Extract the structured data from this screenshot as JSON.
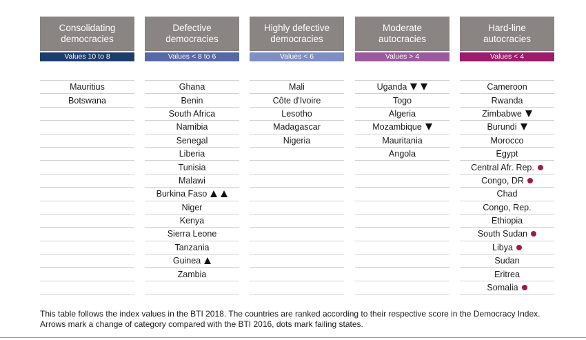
{
  "chart_data": {
    "type": "table",
    "columns": [
      {
        "header": "Consolidating democracies",
        "range": "Values 10 to 8",
        "color": "#1b3d6e",
        "rows": [
          {
            "name": "Mauritius"
          },
          {
            "name": "Botswana"
          }
        ]
      },
      {
        "header": "Defective democracies",
        "range": "Values < 8 to 6",
        "color": "#5768a8",
        "rows": [
          {
            "name": "Ghana"
          },
          {
            "name": "Benin"
          },
          {
            "name": "South Africa"
          },
          {
            "name": "Namibia"
          },
          {
            "name": "Senegal"
          },
          {
            "name": "Liberia"
          },
          {
            "name": "Tunisia"
          },
          {
            "name": "Malawi"
          },
          {
            "name": "Burkina Faso",
            "arrows": [
              "up",
              "up"
            ]
          },
          {
            "name": "Niger"
          },
          {
            "name": "Kenya"
          },
          {
            "name": "Sierra Leone"
          },
          {
            "name": "Tanzania"
          },
          {
            "name": "Guinea",
            "arrows": [
              "up"
            ]
          },
          {
            "name": "Zambia"
          }
        ]
      },
      {
        "header": "Highly defective democracies",
        "range": "Values < 6",
        "color": "#7d8fc4",
        "rows": [
          {
            "name": "Mali"
          },
          {
            "name": "Côte d'Ivoire"
          },
          {
            "name": "Lesotho"
          },
          {
            "name": "Madagascar"
          },
          {
            "name": "Nigeria"
          }
        ]
      },
      {
        "header": "Moderate autocracies",
        "range": "Values > 4",
        "color": "#9a5a9e",
        "rows": [
          {
            "name": "Uganda",
            "arrows": [
              "down",
              "down"
            ]
          },
          {
            "name": "Togo"
          },
          {
            "name": "Algeria"
          },
          {
            "name": "Mozambique",
            "arrows": [
              "down"
            ]
          },
          {
            "name": "Mauritania"
          },
          {
            "name": "Angola"
          }
        ]
      },
      {
        "header": "Hard-line autocracies",
        "range": "Values < 4",
        "color": "#9e1a6a",
        "rows": [
          {
            "name": "Cameroon"
          },
          {
            "name": "Rwanda"
          },
          {
            "name": "Zimbabwe",
            "arrows": [
              "down"
            ]
          },
          {
            "name": "Burundi",
            "arrows": [
              "down"
            ]
          },
          {
            "name": "Morocco"
          },
          {
            "name": "Egypt"
          },
          {
            "name": "Central Afr. Rep.",
            "dot": true
          },
          {
            "name": "Congo, DR",
            "dot": true
          },
          {
            "name": "Chad"
          },
          {
            "name": "Congo, Rep."
          },
          {
            "name": "Ethiopia"
          },
          {
            "name": "South Sudan",
            "dot": true
          },
          {
            "name": "Libya",
            "dot": true
          },
          {
            "name": "Sudan"
          },
          {
            "name": "Eritrea"
          },
          {
            "name": "Somalia",
            "dot": true
          }
        ]
      }
    ],
    "failing_state_dot_color": "#9e1a4e",
    "footnote": "This table follows the index values in the BTI 2018. The countries are ranked according to their respective score in the Democracy Index. Arrows mark a change of category compared with the BTI 2016, dots mark failing states."
  }
}
